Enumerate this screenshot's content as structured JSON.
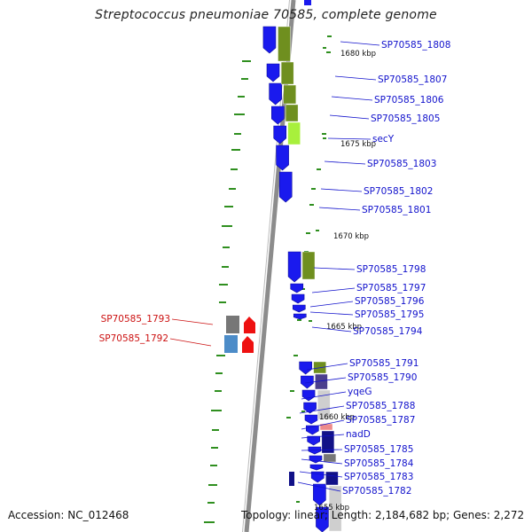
{
  "title": "Streptococcus pneumoniae 70585, complete genome",
  "accession": "Accession: NC_012468",
  "summary": "Topology: linear; Length: 2,184,682 bp; Genes: 2,272",
  "colors": {
    "backbone": "#8c8c8c",
    "cds": "#1a1aee",
    "cog_green": "#6f8f1f",
    "cog_lime": "#a8f03c",
    "cog_purple": "#4b3f8e",
    "cog_light": "#cfcfcf",
    "cog_pink": "#ee8b8b",
    "cog_navy": "#111188",
    "cog_gray": "#777777",
    "cog_steel": "#4c8cc8",
    "rna": "#ee1111",
    "label_blue": "#1111cc",
    "label_red": "#cc1111",
    "gc_dash": "#2f8f1f"
  },
  "ticks": [
    {
      "label": "1680 kbp"
    },
    {
      "label": "1675 kbp"
    },
    {
      "label": "1670 kbp"
    },
    {
      "label": "1665 kbp"
    },
    {
      "label": "1660 kbp"
    },
    {
      "label": "1655 kbp"
    }
  ],
  "genes_right": [
    {
      "name": "SP70585_1808",
      "cog": "cog_green"
    },
    {
      "name": "SP70585_1807",
      "cog": "cog_green"
    },
    {
      "name": "SP70585_1806",
      "cog": "cog_green"
    },
    {
      "name": "SP70585_1805",
      "cog": "cog_green"
    },
    {
      "name": "secY",
      "cog": "cog_lime"
    },
    {
      "name": "SP70585_1803",
      "cog": ""
    },
    {
      "name": "SP70585_1802",
      "cog": ""
    },
    {
      "name": "SP70585_1801",
      "cog": ""
    },
    {
      "name": "SP70585_1798",
      "cog": "cog_green"
    },
    {
      "name": "SP70585_1797",
      "cog": ""
    },
    {
      "name": "SP70585_1796",
      "cog": ""
    },
    {
      "name": "SP70585_1795",
      "cog": ""
    },
    {
      "name": "SP70585_1794",
      "cog": ""
    },
    {
      "name": "SP70585_1791",
      "cog": "cog_green"
    },
    {
      "name": "SP70585_1790",
      "cog": "cog_purple"
    },
    {
      "name": "yqeG",
      "cog": "cog_light"
    },
    {
      "name": "SP70585_1788",
      "cog": "cog_light"
    },
    {
      "name": "SP70585_1787",
      "cog": "cog_light"
    },
    {
      "name": "nadD",
      "cog": "cog_pink"
    },
    {
      "name": "SP70585_1785",
      "cog": "cog_navy"
    },
    {
      "name": "SP70585_1784",
      "cog": "cog_gray"
    },
    {
      "name": "SP70585_1783",
      "cog": "cog_navy"
    },
    {
      "name": "SP70585_1782",
      "cog": "cog_light"
    }
  ],
  "genes_left": [
    {
      "name": "SP70585_1793",
      "cog": "cog_gray",
      "feature": "rna"
    },
    {
      "name": "SP70585_1792",
      "cog": "cog_steel",
      "feature": "rna"
    }
  ]
}
